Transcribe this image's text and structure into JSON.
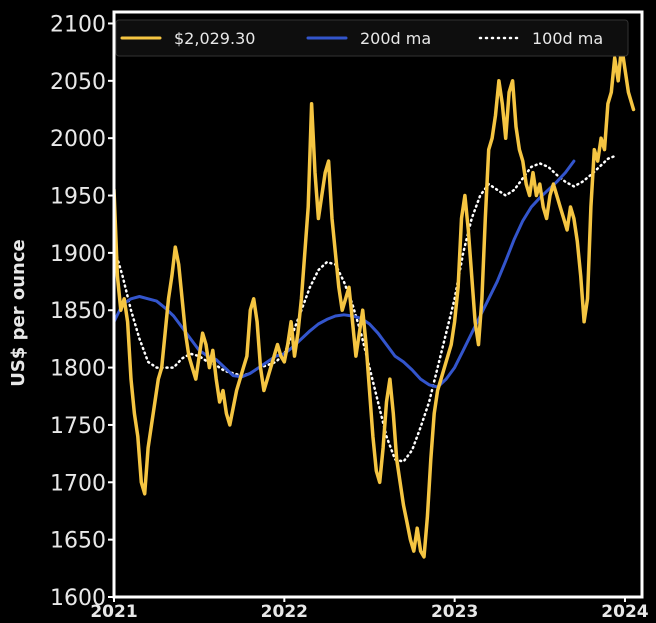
{
  "chart_data": {
    "type": "line",
    "title": "",
    "ylabel": "US$ per ounce",
    "xlabel": "",
    "ylim": [
      1600,
      2110
    ],
    "xlim": [
      2021.0,
      2024.1
    ],
    "yticks": [
      1600,
      1650,
      1700,
      1750,
      1800,
      1850,
      1900,
      1950,
      2000,
      2050,
      2100
    ],
    "xticks": [
      {
        "value": 2021,
        "label": "2021"
      },
      {
        "value": 2022,
        "label": "2022"
      },
      {
        "value": 2023,
        "label": "2023"
      },
      {
        "value": 2024,
        "label": "2024"
      }
    ],
    "legend_position": "top",
    "series": [
      {
        "name": "$2,029.30",
        "style": "solid",
        "color": "#f5c542",
        "points": [
          [
            2021.0,
            1955
          ],
          [
            2021.02,
            1880
          ],
          [
            2021.04,
            1850
          ],
          [
            2021.06,
            1860
          ],
          [
            2021.08,
            1840
          ],
          [
            2021.1,
            1790
          ],
          [
            2021.12,
            1760
          ],
          [
            2021.14,
            1740
          ],
          [
            2021.16,
            1700
          ],
          [
            2021.18,
            1690
          ],
          [
            2021.2,
            1730
          ],
          [
            2021.22,
            1750
          ],
          [
            2021.24,
            1770
          ],
          [
            2021.26,
            1790
          ],
          [
            2021.28,
            1800
          ],
          [
            2021.3,
            1830
          ],
          [
            2021.32,
            1860
          ],
          [
            2021.34,
            1880
          ],
          [
            2021.36,
            1905
          ],
          [
            2021.38,
            1890
          ],
          [
            2021.4,
            1860
          ],
          [
            2021.42,
            1830
          ],
          [
            2021.44,
            1810
          ],
          [
            2021.46,
            1800
          ],
          [
            2021.48,
            1790
          ],
          [
            2021.5,
            1810
          ],
          [
            2021.52,
            1830
          ],
          [
            2021.54,
            1820
          ],
          [
            2021.56,
            1800
          ],
          [
            2021.58,
            1815
          ],
          [
            2021.6,
            1790
          ],
          [
            2021.62,
            1770
          ],
          [
            2021.64,
            1780
          ],
          [
            2021.66,
            1760
          ],
          [
            2021.68,
            1750
          ],
          [
            2021.7,
            1765
          ],
          [
            2021.72,
            1780
          ],
          [
            2021.74,
            1790
          ],
          [
            2021.76,
            1800
          ],
          [
            2021.78,
            1810
          ],
          [
            2021.8,
            1850
          ],
          [
            2021.82,
            1860
          ],
          [
            2021.84,
            1840
          ],
          [
            2021.86,
            1800
          ],
          [
            2021.88,
            1780
          ],
          [
            2021.9,
            1790
          ],
          [
            2021.92,
            1800
          ],
          [
            2021.94,
            1810
          ],
          [
            2021.96,
            1820
          ],
          [
            2021.98,
            1810
          ],
          [
            2022.0,
            1805
          ],
          [
            2022.02,
            1820
          ],
          [
            2022.04,
            1840
          ],
          [
            2022.06,
            1810
          ],
          [
            2022.08,
            1830
          ],
          [
            2022.1,
            1860
          ],
          [
            2022.12,
            1900
          ],
          [
            2022.14,
            1940
          ],
          [
            2022.16,
            2030
          ],
          [
            2022.18,
            1970
          ],
          [
            2022.2,
            1930
          ],
          [
            2022.22,
            1950
          ],
          [
            2022.24,
            1970
          ],
          [
            2022.26,
            1980
          ],
          [
            2022.28,
            1930
          ],
          [
            2022.3,
            1900
          ],
          [
            2022.32,
            1870
          ],
          [
            2022.34,
            1850
          ],
          [
            2022.36,
            1860
          ],
          [
            2022.38,
            1870
          ],
          [
            2022.4,
            1840
          ],
          [
            2022.42,
            1810
          ],
          [
            2022.44,
            1830
          ],
          [
            2022.46,
            1850
          ],
          [
            2022.48,
            1820
          ],
          [
            2022.5,
            1780
          ],
          [
            2022.52,
            1740
          ],
          [
            2022.54,
            1710
          ],
          [
            2022.56,
            1700
          ],
          [
            2022.58,
            1730
          ],
          [
            2022.6,
            1770
          ],
          [
            2022.62,
            1790
          ],
          [
            2022.64,
            1760
          ],
          [
            2022.66,
            1720
          ],
          [
            2022.68,
            1700
          ],
          [
            2022.7,
            1680
          ],
          [
            2022.72,
            1665
          ],
          [
            2022.74,
            1650
          ],
          [
            2022.76,
            1640
          ],
          [
            2022.78,
            1660
          ],
          [
            2022.8,
            1640
          ],
          [
            2022.82,
            1635
          ],
          [
            2022.84,
            1670
          ],
          [
            2022.86,
            1720
          ],
          [
            2022.88,
            1760
          ],
          [
            2022.9,
            1780
          ],
          [
            2022.92,
            1790
          ],
          [
            2022.94,
            1800
          ],
          [
            2022.96,
            1810
          ],
          [
            2022.98,
            1820
          ],
          [
            2023.0,
            1840
          ],
          [
            2023.02,
            1870
          ],
          [
            2023.04,
            1930
          ],
          [
            2023.06,
            1950
          ],
          [
            2023.08,
            1920
          ],
          [
            2023.1,
            1880
          ],
          [
            2023.12,
            1840
          ],
          [
            2023.14,
            1820
          ],
          [
            2023.16,
            1860
          ],
          [
            2023.18,
            1930
          ],
          [
            2023.2,
            1990
          ],
          [
            2023.22,
            2000
          ],
          [
            2023.24,
            2020
          ],
          [
            2023.26,
            2050
          ],
          [
            2023.28,
            2030
          ],
          [
            2023.3,
            2000
          ],
          [
            2023.32,
            2040
          ],
          [
            2023.34,
            2050
          ],
          [
            2023.36,
            2010
          ],
          [
            2023.38,
            1990
          ],
          [
            2023.4,
            1980
          ],
          [
            2023.42,
            1960
          ],
          [
            2023.44,
            1950
          ],
          [
            2023.46,
            1970
          ],
          [
            2023.48,
            1950
          ],
          [
            2023.5,
            1960
          ],
          [
            2023.52,
            1940
          ],
          [
            2023.54,
            1930
          ],
          [
            2023.56,
            1950
          ],
          [
            2023.58,
            1960
          ],
          [
            2023.6,
            1950
          ],
          [
            2023.62,
            1940
          ],
          [
            2023.64,
            1930
          ],
          [
            2023.66,
            1920
          ],
          [
            2023.68,
            1940
          ],
          [
            2023.7,
            1930
          ],
          [
            2023.72,
            1910
          ],
          [
            2023.74,
            1880
          ],
          [
            2023.76,
            1840
          ],
          [
            2023.78,
            1860
          ],
          [
            2023.8,
            1940
          ],
          [
            2023.82,
            1990
          ],
          [
            2023.84,
            1980
          ],
          [
            2023.86,
            2000
          ],
          [
            2023.88,
            1990
          ],
          [
            2023.9,
            2030
          ],
          [
            2023.92,
            2040
          ],
          [
            2023.94,
            2070
          ],
          [
            2023.96,
            2050
          ],
          [
            2023.98,
            2080
          ],
          [
            2024.0,
            2060
          ],
          [
            2024.02,
            2040
          ],
          [
            2024.04,
            2030
          ],
          [
            2024.05,
            2025
          ]
        ]
      },
      {
        "name": "200d ma",
        "style": "solid",
        "color": "#3355cc",
        "points": [
          [
            2021.0,
            1840
          ],
          [
            2021.05,
            1855
          ],
          [
            2021.1,
            1860
          ],
          [
            2021.15,
            1862
          ],
          [
            2021.2,
            1860
          ],
          [
            2021.25,
            1858
          ],
          [
            2021.3,
            1852
          ],
          [
            2021.35,
            1845
          ],
          [
            2021.4,
            1835
          ],
          [
            2021.45,
            1825
          ],
          [
            2021.5,
            1815
          ],
          [
            2021.55,
            1810
          ],
          [
            2021.6,
            1807
          ],
          [
            2021.65,
            1800
          ],
          [
            2021.7,
            1793
          ],
          [
            2021.75,
            1792
          ],
          [
            2021.8,
            1795
          ],
          [
            2021.85,
            1800
          ],
          [
            2021.9,
            1805
          ],
          [
            2021.95,
            1810
          ],
          [
            2022.0,
            1812
          ],
          [
            2022.05,
            1818
          ],
          [
            2022.1,
            1825
          ],
          [
            2022.15,
            1832
          ],
          [
            2022.2,
            1838
          ],
          [
            2022.25,
            1842
          ],
          [
            2022.3,
            1845
          ],
          [
            2022.35,
            1846
          ],
          [
            2022.4,
            1845
          ],
          [
            2022.45,
            1843
          ],
          [
            2022.5,
            1838
          ],
          [
            2022.55,
            1830
          ],
          [
            2022.6,
            1820
          ],
          [
            2022.65,
            1810
          ],
          [
            2022.7,
            1805
          ],
          [
            2022.75,
            1798
          ],
          [
            2022.8,
            1790
          ],
          [
            2022.85,
            1785
          ],
          [
            2022.9,
            1783
          ],
          [
            2022.95,
            1790
          ],
          [
            2023.0,
            1800
          ],
          [
            2023.05,
            1815
          ],
          [
            2023.1,
            1830
          ],
          [
            2023.15,
            1845
          ],
          [
            2023.2,
            1860
          ],
          [
            2023.25,
            1875
          ],
          [
            2023.3,
            1893
          ],
          [
            2023.35,
            1912
          ],
          [
            2023.4,
            1928
          ],
          [
            2023.45,
            1940
          ],
          [
            2023.5,
            1948
          ],
          [
            2023.55,
            1955
          ],
          [
            2023.6,
            1962
          ],
          [
            2023.65,
            1970
          ],
          [
            2023.7,
            1980
          ]
        ]
      },
      {
        "name": "100d ma",
        "style": "dotted",
        "color": "#ffffff",
        "points": [
          [
            2021.0,
            1905
          ],
          [
            2021.05,
            1880
          ],
          [
            2021.1,
            1850
          ],
          [
            2021.15,
            1825
          ],
          [
            2021.2,
            1805
          ],
          [
            2021.25,
            1800
          ],
          [
            2021.3,
            1800
          ],
          [
            2021.35,
            1800
          ],
          [
            2021.4,
            1808
          ],
          [
            2021.45,
            1812
          ],
          [
            2021.5,
            1810
          ],
          [
            2021.55,
            1805
          ],
          [
            2021.6,
            1802
          ],
          [
            2021.65,
            1797
          ],
          [
            2021.7,
            1795
          ],
          [
            2021.75,
            1793
          ],
          [
            2021.8,
            1795
          ],
          [
            2021.85,
            1800
          ],
          [
            2021.9,
            1802
          ],
          [
            2021.95,
            1805
          ],
          [
            2022.0,
            1812
          ],
          [
            2022.05,
            1830
          ],
          [
            2022.1,
            1850
          ],
          [
            2022.15,
            1870
          ],
          [
            2022.2,
            1885
          ],
          [
            2022.25,
            1892
          ],
          [
            2022.3,
            1890
          ],
          [
            2022.35,
            1875
          ],
          [
            2022.4,
            1855
          ],
          [
            2022.45,
            1830
          ],
          [
            2022.5,
            1800
          ],
          [
            2022.55,
            1770
          ],
          [
            2022.6,
            1740
          ],
          [
            2022.65,
            1720
          ],
          [
            2022.7,
            1718
          ],
          [
            2022.75,
            1728
          ],
          [
            2022.8,
            1748
          ],
          [
            2022.85,
            1770
          ],
          [
            2022.9,
            1800
          ],
          [
            2022.95,
            1830
          ],
          [
            2023.0,
            1860
          ],
          [
            2023.05,
            1900
          ],
          [
            2023.1,
            1930
          ],
          [
            2023.15,
            1950
          ],
          [
            2023.2,
            1960
          ],
          [
            2023.25,
            1955
          ],
          [
            2023.3,
            1950
          ],
          [
            2023.35,
            1955
          ],
          [
            2023.4,
            1965
          ],
          [
            2023.45,
            1975
          ],
          [
            2023.5,
            1978
          ],
          [
            2023.55,
            1975
          ],
          [
            2023.6,
            1968
          ],
          [
            2023.65,
            1962
          ],
          [
            2023.7,
            1958
          ],
          [
            2023.75,
            1962
          ],
          [
            2023.8,
            1968
          ],
          [
            2023.85,
            1975
          ],
          [
            2023.9,
            1982
          ],
          [
            2023.95,
            1985
          ]
        ]
      }
    ],
    "legend": [
      {
        "label": "$2,029.30",
        "series": 0
      },
      {
        "label": "200d ma",
        "series": 1
      },
      {
        "label": "100d ma",
        "series": 2
      }
    ],
    "background": "#000000",
    "axis_color": "#ffffff"
  }
}
